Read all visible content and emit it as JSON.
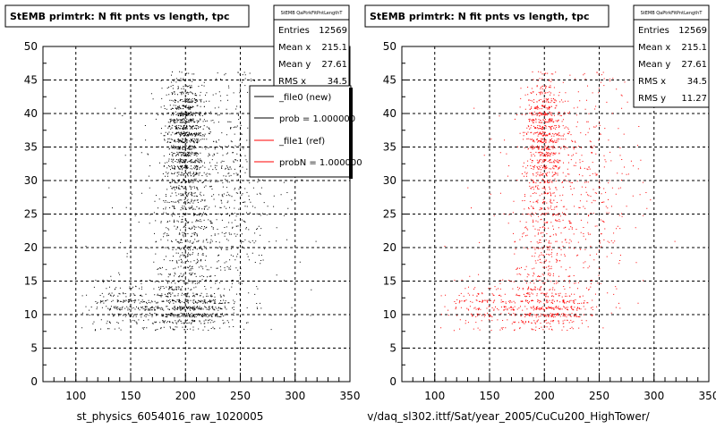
{
  "chart_data": [
    {
      "type": "scatter",
      "title": "StEMB primtrk: N fit pnts vs length, tpc",
      "xlabel": "st_physics_6054016_raw_1020005",
      "ylabel": "",
      "xlim": [
        70,
        350
      ],
      "ylim": [
        0,
        50
      ],
      "x_ticks": [
        "100",
        "150",
        "200",
        "250",
        "300",
        "350"
      ],
      "y_ticks": [
        "0",
        "5",
        "10",
        "15",
        "20",
        "25",
        "30",
        "35",
        "40",
        "45",
        "50"
      ],
      "grid": true,
      "marker_color": "#000000",
      "stats": {
        "name": "StEMB QaPtrkFitPntLengthT",
        "entries_label": "Entries",
        "entries": "12569",
        "meanx_label": "Mean x",
        "meanx": "215.1",
        "meany_label": "Mean y",
        "meany": "27.61",
        "rmsx_label": "RMS x",
        "rmsx": "34.5"
      },
      "legend": {
        "placement": "top-right",
        "entries": [
          {
            "label": "_file0 (new)",
            "color": "#000000"
          },
          {
            "label": "prob = 1.000000",
            "color": "#000000"
          },
          {
            "label": "_file1 (ref)",
            "color": "#ff0000"
          },
          {
            "label": "probN = 1.000000",
            "color": "#ff0000"
          }
        ]
      },
      "density": {
        "clusters": [
          {
            "x": 200,
            "y": 38,
            "sx": 9,
            "sy": 4,
            "w": 0.26
          },
          {
            "x": 198,
            "y": 31,
            "sx": 8,
            "sy": 4,
            "w": 0.1
          },
          {
            "x": 205,
            "y": 10.8,
            "sx": 18,
            "sy": 1.4,
            "w": 0.14
          },
          {
            "x": 150,
            "y": 11.5,
            "sx": 24,
            "sy": 1.8,
            "w": 0.1
          },
          {
            "x": 200,
            "y": 18,
            "sx": 12,
            "sy": 5,
            "w": 0.12
          },
          {
            "x": 235,
            "y": 30,
            "sx": 22,
            "sy": 9,
            "w": 0.16
          },
          {
            "x": 215,
            "y": 22,
            "sx": 38,
            "sy": 11,
            "w": 0.12
          }
        ]
      }
    },
    {
      "type": "scatter",
      "title": "StEMB primtrk: N fit pnts vs length, tpc",
      "xlabel": "v/daq_sl302.ittf/Sat/year_2005/CuCu200_HighTower/",
      "ylabel": "",
      "xlim": [
        70,
        350
      ],
      "ylim": [
        0,
        50
      ],
      "x_ticks": [
        "100",
        "150",
        "200",
        "250",
        "300",
        "350"
      ],
      "y_ticks": [
        "0",
        "5",
        "10",
        "15",
        "20",
        "25",
        "30",
        "35",
        "40",
        "45",
        "50"
      ],
      "grid": true,
      "marker_color": "#ff0000",
      "stats": {
        "name": "StEMB QaPtrkFitPntLengthT",
        "entries_label": "Entries",
        "entries": "12569",
        "meanx_label": "Mean x",
        "meanx": "215.1",
        "meany_label": "Mean y",
        "meany": "27.61",
        "rmsx_label": "RMS x",
        "rmsx": "34.5",
        "rmsy_label": "RMS y",
        "rmsy": "11.27"
      },
      "density": {
        "clusters": [
          {
            "x": 200,
            "y": 38,
            "sx": 9,
            "sy": 4,
            "w": 0.26
          },
          {
            "x": 198,
            "y": 31,
            "sx": 8,
            "sy": 4,
            "w": 0.1
          },
          {
            "x": 205,
            "y": 10.8,
            "sx": 18,
            "sy": 1.4,
            "w": 0.14
          },
          {
            "x": 150,
            "y": 11.5,
            "sx": 24,
            "sy": 1.8,
            "w": 0.1
          },
          {
            "x": 200,
            "y": 18,
            "sx": 12,
            "sy": 5,
            "w": 0.12
          },
          {
            "x": 235,
            "y": 30,
            "sx": 22,
            "sy": 9,
            "w": 0.16
          },
          {
            "x": 215,
            "y": 22,
            "sx": 38,
            "sy": 11,
            "w": 0.12
          }
        ]
      }
    }
  ]
}
